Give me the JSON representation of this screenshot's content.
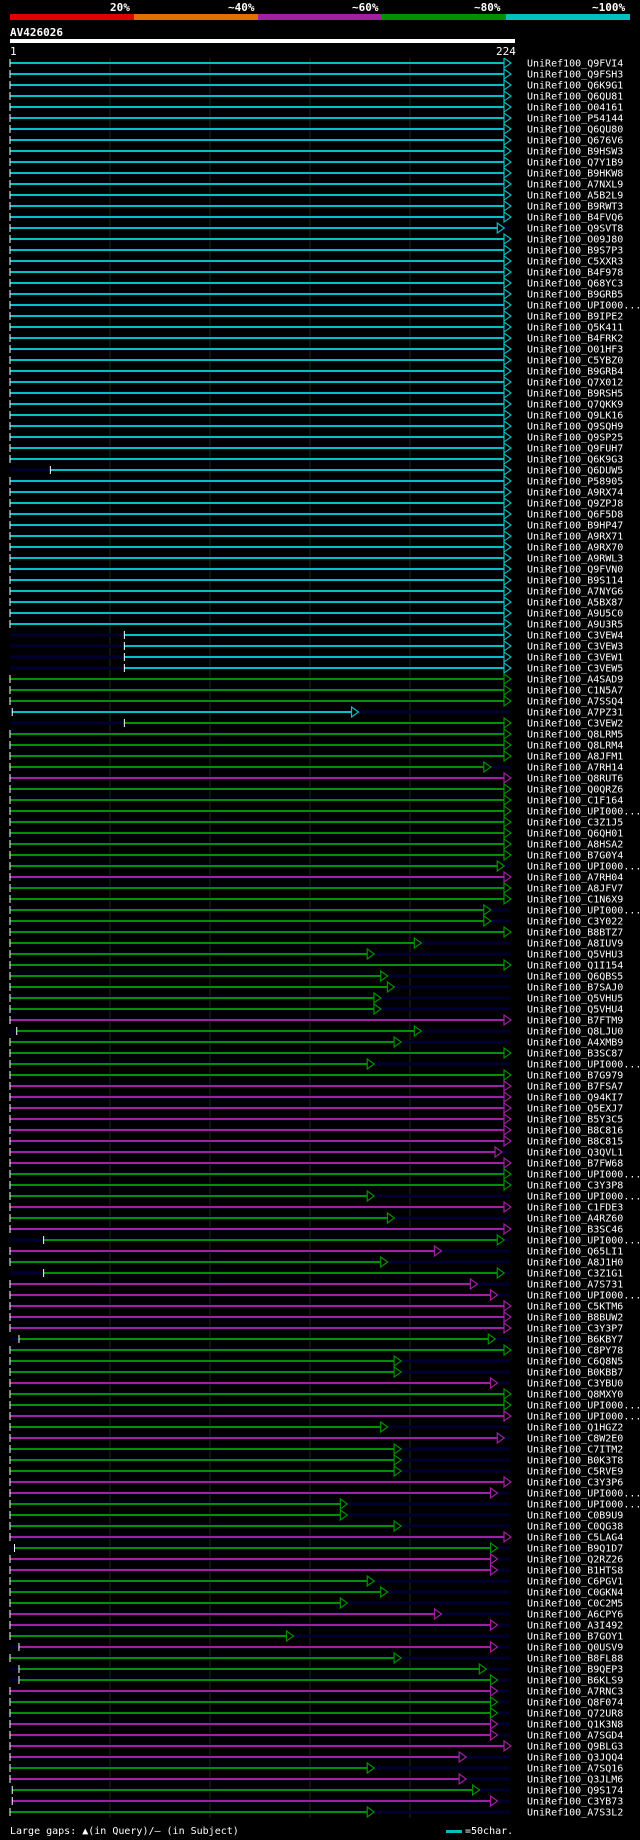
{
  "scale": {
    "labels": [
      "20%",
      "~40%",
      "~60%",
      "~80%",
      "~100%"
    ],
    "colors": [
      "#e00000",
      "#e07000",
      "#a020a0",
      "#009000",
      "#00c0c0"
    ]
  },
  "query": {
    "title": "AV426026",
    "start": "1",
    "end": "224"
  },
  "footer": {
    "large_gaps": "Large gaps: ▲(in Query)/— (in Subject)",
    "legend": "=50char."
  },
  "hits": [
    {
      "id": "UniRef100_Q9FVI4",
      "start": 1,
      "end": 224,
      "level": 5
    },
    {
      "id": "UniRef100_Q9FSH3",
      "start": 1,
      "end": 224,
      "level": 5
    },
    {
      "id": "UniRef100_Q6K9G1",
      "start": 1,
      "end": 224,
      "level": 5
    },
    {
      "id": "UniRef100_Q6QU81",
      "start": 1,
      "end": 224,
      "level": 5
    },
    {
      "id": "UniRef100_O04161",
      "start": 1,
      "end": 224,
      "level": 5
    },
    {
      "id": "UniRef100_P54144",
      "start": 1,
      "end": 224,
      "level": 5
    },
    {
      "id": "UniRef100_Q6QU80",
      "start": 1,
      "end": 224,
      "level": 5
    },
    {
      "id": "UniRef100_Q676V6",
      "start": 1,
      "end": 224,
      "level": 5
    },
    {
      "id": "UniRef100_B9HSW3",
      "start": 1,
      "end": 224,
      "level": 5
    },
    {
      "id": "UniRef100_Q7Y1B9",
      "start": 1,
      "end": 224,
      "level": 5
    },
    {
      "id": "UniRef100_B9HKW8",
      "start": 1,
      "end": 224,
      "level": 5
    },
    {
      "id": "UniRef100_A7NXL9",
      "start": 1,
      "end": 224,
      "level": 5
    },
    {
      "id": "UniRef100_A5B2L9",
      "start": 1,
      "end": 224,
      "level": 5
    },
    {
      "id": "UniRef100_B9RWT3",
      "start": 1,
      "end": 224,
      "level": 5
    },
    {
      "id": "UniRef100_B4FVQ6",
      "start": 1,
      "end": 224,
      "level": 5
    },
    {
      "id": "UniRef100_Q9SVT8",
      "start": 1,
      "end": 221,
      "level": 5
    },
    {
      "id": "UniRef100_O09J80",
      "start": 1,
      "end": 224,
      "level": 5
    },
    {
      "id": "UniRef100_B9S7P3",
      "start": 1,
      "end": 224,
      "level": 5
    },
    {
      "id": "UniRef100_C5XXR3",
      "start": 1,
      "end": 224,
      "level": 5
    },
    {
      "id": "UniRef100_B4F978",
      "start": 1,
      "end": 224,
      "level": 5
    },
    {
      "id": "UniRef100_Q68YC3",
      "start": 1,
      "end": 224,
      "level": 5
    },
    {
      "id": "UniRef100_B9GRB5",
      "start": 1,
      "end": 224,
      "level": 5
    },
    {
      "id": "UniRef100_UPI000...",
      "start": 1,
      "end": 224,
      "level": 5
    },
    {
      "id": "UniRef100_B9IPE2",
      "start": 1,
      "end": 224,
      "level": 5
    },
    {
      "id": "UniRef100_Q5K411",
      "start": 1,
      "end": 224,
      "level": 5
    },
    {
      "id": "UniRef100_B4FRK2",
      "start": 1,
      "end": 224,
      "level": 5
    },
    {
      "id": "UniRef100_O01HF3",
      "start": 1,
      "end": 224,
      "level": 5
    },
    {
      "id": "UniRef100_C5YBZ0",
      "start": 1,
      "end": 224,
      "level": 5
    },
    {
      "id": "UniRef100_B9GRB4",
      "start": 1,
      "end": 224,
      "level": 5
    },
    {
      "id": "UniRef100_Q7X012",
      "start": 1,
      "end": 224,
      "level": 5
    },
    {
      "id": "UniRef100_B9RSH5",
      "start": 1,
      "end": 224,
      "level": 5
    },
    {
      "id": "UniRef100_Q7QKK9",
      "start": 1,
      "end": 224,
      "level": 5
    },
    {
      "id": "UniRef100_Q9LK16",
      "start": 1,
      "end": 224,
      "level": 5
    },
    {
      "id": "UniRef100_Q9SQH9",
      "start": 1,
      "end": 224,
      "level": 5
    },
    {
      "id": "UniRef100_Q9SP25",
      "start": 1,
      "end": 224,
      "level": 5
    },
    {
      "id": "UniRef100_Q9FUH7",
      "start": 1,
      "end": 224,
      "level": 5
    },
    {
      "id": "UniRef100_Q6K9G3",
      "start": 1,
      "end": 224,
      "level": 5
    },
    {
      "id": "UniRef100_Q6DUW5",
      "start": 19,
      "end": 224,
      "level": 5
    },
    {
      "id": "UniRef100_P58905",
      "start": 1,
      "end": 224,
      "level": 5
    },
    {
      "id": "UniRef100_A9RX74",
      "start": 1,
      "end": 224,
      "level": 5
    },
    {
      "id": "UniRef100_Q9ZPJ8",
      "start": 1,
      "end": 224,
      "level": 5
    },
    {
      "id": "UniRef100_Q6F5D8",
      "start": 1,
      "end": 224,
      "level": 5
    },
    {
      "id": "UniRef100_B9HP47",
      "start": 1,
      "end": 224,
      "level": 5
    },
    {
      "id": "UniRef100_A9RX71",
      "start": 1,
      "end": 224,
      "level": 5
    },
    {
      "id": "UniRef100_A9RX70",
      "start": 1,
      "end": 224,
      "level": 5
    },
    {
      "id": "UniRef100_A9RWL3",
      "start": 1,
      "end": 224,
      "level": 5
    },
    {
      "id": "UniRef100_Q9FVN0",
      "start": 1,
      "end": 224,
      "level": 5
    },
    {
      "id": "UniRef100_B9S114",
      "start": 1,
      "end": 224,
      "level": 5
    },
    {
      "id": "UniRef100_A7NYG6",
      "start": 1,
      "end": 224,
      "level": 5
    },
    {
      "id": "UniRef100_A5BX87",
      "start": 1,
      "end": 224,
      "level": 5
    },
    {
      "id": "UniRef100_A9U5C0",
      "start": 1,
      "end": 224,
      "level": 5
    },
    {
      "id": "UniRef100_A9U3R5",
      "start": 1,
      "end": 224,
      "level": 5
    },
    {
      "id": "UniRef100_C3VEW4",
      "start": 52,
      "end": 224,
      "level": 5
    },
    {
      "id": "UniRef100_C3VEW3",
      "start": 52,
      "end": 224,
      "level": 5
    },
    {
      "id": "UniRef100_C3VEW1",
      "start": 52,
      "end": 224,
      "level": 5
    },
    {
      "id": "UniRef100_C3VEW5",
      "start": 52,
      "end": 224,
      "level": 5
    },
    {
      "id": "UniRef100_A4SAD9",
      "start": 1,
      "end": 224,
      "level": 4
    },
    {
      "id": "UniRef100_C1N5A7",
      "start": 1,
      "end": 224,
      "level": 4
    },
    {
      "id": "UniRef100_A7SSQ4",
      "start": 1,
      "end": 224,
      "level": 4
    },
    {
      "id": "UniRef100_A7PZ31",
      "start": 2,
      "end": 156,
      "level": 5
    },
    {
      "id": "UniRef100_C3VEW2",
      "start": 52,
      "end": 224,
      "level": 4
    },
    {
      "id": "UniRef100_Q8LRM5",
      "start": 1,
      "end": 224,
      "level": 4
    },
    {
      "id": "UniRef100_Q8LRM4",
      "start": 1,
      "end": 224,
      "level": 4
    },
    {
      "id": "UniRef100_A8JFM1",
      "start": 1,
      "end": 224,
      "level": 4
    },
    {
      "id": "UniRef100_A7RH14",
      "start": 1,
      "end": 215,
      "level": 4
    },
    {
      "id": "UniRef100_Q8RUT6",
      "start": 1,
      "end": 224,
      "level": 3
    },
    {
      "id": "UniRef100_Q0QRZ6",
      "start": 1,
      "end": 224,
      "level": 4
    },
    {
      "id": "UniRef100_C1F164",
      "start": 1,
      "end": 224,
      "level": 4
    },
    {
      "id": "UniRef100_UPI000...",
      "start": 1,
      "end": 224,
      "level": 4
    },
    {
      "id": "UniRef100_C3Z1J5",
      "start": 1,
      "end": 224,
      "level": 4
    },
    {
      "id": "UniRef100_Q6QH01",
      "start": 1,
      "end": 224,
      "level": 4
    },
    {
      "id": "UniRef100_A8HSA2",
      "start": 1,
      "end": 224,
      "level": 4
    },
    {
      "id": "UniRef100_B7G0Y4",
      "start": 1,
      "end": 224,
      "level": 4
    },
    {
      "id": "UniRef100_UPI000...",
      "start": 1,
      "end": 221,
      "level": 4
    },
    {
      "id": "UniRef100_A7RH04",
      "start": 1,
      "end": 224,
      "level": 3
    },
    {
      "id": "UniRef100_A8JFV7",
      "start": 1,
      "end": 224,
      "level": 4
    },
    {
      "id": "UniRef100_C1N6X9",
      "start": 1,
      "end": 224,
      "level": 4
    },
    {
      "id": "UniRef100_UPI000...",
      "start": 1,
      "end": 215,
      "level": 4
    },
    {
      "id": "UniRef100_C3Y022",
      "start": 1,
      "end": 215,
      "level": 4
    },
    {
      "id": "UniRef100_B8BTZ7",
      "start": 1,
      "end": 224,
      "level": 4
    },
    {
      "id": "UniRef100_A8IUV9",
      "start": 1,
      "end": 184,
      "level": 4
    },
    {
      "id": "UniRef100_Q5VHU3",
      "start": 1,
      "end": 163,
      "level": 4
    },
    {
      "id": "UniRef100_Q1I154",
      "start": 1,
      "end": 224,
      "level": 4
    },
    {
      "id": "UniRef100_Q6QBS5",
      "start": 1,
      "end": 169,
      "level": 4
    },
    {
      "id": "UniRef100_B7SAJ0",
      "start": 1,
      "end": 172,
      "level": 4
    },
    {
      "id": "UniRef100_Q5VHU5",
      "start": 1,
      "end": 166,
      "level": 4
    },
    {
      "id": "UniRef100_Q5VHU4",
      "start": 1,
      "end": 166,
      "level": 4
    },
    {
      "id": "UniRef100_B7FTM9",
      "start": 1,
      "end": 224,
      "level": 3
    },
    {
      "id": "UniRef100_Q8LJU0",
      "start": 4,
      "end": 184,
      "level": 4
    },
    {
      "id": "UniRef100_A4XMB9",
      "start": 1,
      "end": 175,
      "level": 4
    },
    {
      "id": "UniRef100_B3SC87",
      "start": 1,
      "end": 224,
      "level": 4
    },
    {
      "id": "UniRef100_UPI000...",
      "start": 1,
      "end": 163,
      "level": 4
    },
    {
      "id": "UniRef100_B7G979",
      "start": 1,
      "end": 224,
      "level": 4
    },
    {
      "id": "UniRef100_B7FSA7",
      "start": 1,
      "end": 224,
      "level": 3
    },
    {
      "id": "UniRef100_Q94KI7",
      "start": 1,
      "end": 224,
      "level": 3
    },
    {
      "id": "UniRef100_Q5EXJ7",
      "start": 1,
      "end": 224,
      "level": 3
    },
    {
      "id": "UniRef100_B5Y3C5",
      "start": 1,
      "end": 224,
      "level": 3
    },
    {
      "id": "UniRef100_B8C816",
      "start": 1,
      "end": 224,
      "level": 3
    },
    {
      "id": "UniRef100_B8C815",
      "start": 1,
      "end": 224,
      "level": 3
    },
    {
      "id": "UniRef100_Q3QVL1",
      "start": 1,
      "end": 220,
      "level": 3
    },
    {
      "id": "UniRef100_B7FW68",
      "start": 1,
      "end": 224,
      "level": 3
    },
    {
      "id": "UniRef100_UPI000...",
      "start": 1,
      "end": 224,
      "level": 4
    },
    {
      "id": "UniRef100_C3Y3P8",
      "start": 1,
      "end": 224,
      "level": 4
    },
    {
      "id": "UniRef100_UPI000...",
      "start": 1,
      "end": 163,
      "level": 4
    },
    {
      "id": "UniRef100_C1FDE3",
      "start": 1,
      "end": 224,
      "level": 3
    },
    {
      "id": "UniRef100_A4RZ60",
      "start": 1,
      "end": 172,
      "level": 4
    },
    {
      "id": "UniRef100_B3SC46",
      "start": 1,
      "end": 224,
      "level": 3
    },
    {
      "id": "UniRef100_UPI000...",
      "start": 16,
      "end": 221,
      "level": 4
    },
    {
      "id": "UniRef100_Q65LI1",
      "start": 1,
      "end": 193,
      "level": 3
    },
    {
      "id": "UniRef100_A8J1H0",
      "start": 1,
      "end": 169,
      "level": 4
    },
    {
      "id": "UniRef100_C3Z1G1",
      "start": 16,
      "end": 221,
      "level": 4
    },
    {
      "id": "UniRef100_A7S731",
      "start": 1,
      "end": 209,
      "level": 3
    },
    {
      "id": "UniRef100_UPI000...",
      "start": 1,
      "end": 218,
      "level": 3
    },
    {
      "id": "UniRef100_C5KTM6",
      "start": 1,
      "end": 224,
      "level": 3
    },
    {
      "id": "UniRef100_B8BUW2",
      "start": 1,
      "end": 224,
      "level": 3
    },
    {
      "id": "UniRef100_C3Y3P7",
      "start": 1,
      "end": 224,
      "level": 3
    },
    {
      "id": "UniRef100_B6KBY7",
      "start": 5,
      "end": 217,
      "level": 4
    },
    {
      "id": "UniRef100_C8PY78",
      "start": 1,
      "end": 224,
      "level": 4
    },
    {
      "id": "UniRef100_C6Q8N5",
      "start": 1,
      "end": 175,
      "level": 4
    },
    {
      "id": "UniRef100_B0KBB7",
      "start": 1,
      "end": 175,
      "level": 4
    },
    {
      "id": "UniRef100_C3YBU0",
      "start": 1,
      "end": 218,
      "level": 3
    },
    {
      "id": "UniRef100_Q8MXY0",
      "start": 1,
      "end": 224,
      "level": 4
    },
    {
      "id": "UniRef100_UPI000...",
      "start": 1,
      "end": 224,
      "level": 4
    },
    {
      "id": "UniRef100_UPI000...",
      "start": 1,
      "end": 224,
      "level": 3
    },
    {
      "id": "UniRef100_Q1HGZ2",
      "start": 1,
      "end": 169,
      "level": 4
    },
    {
      "id": "UniRef100_C8W2E0",
      "start": 1,
      "end": 221,
      "level": 3
    },
    {
      "id": "UniRef100_C7ITM2",
      "start": 1,
      "end": 175,
      "level": 4
    },
    {
      "id": "UniRef100_B0K3T8",
      "start": 1,
      "end": 175,
      "level": 4
    },
    {
      "id": "UniRef100_C5RVE9",
      "start": 1,
      "end": 175,
      "level": 4
    },
    {
      "id": "UniRef100_C3Y3P6",
      "start": 1,
      "end": 224,
      "level": 3
    },
    {
      "id": "UniRef100_UPI000...",
      "start": 1,
      "end": 218,
      "level": 3
    },
    {
      "id": "UniRef100_UPI000...",
      "start": 1,
      "end": 151,
      "level": 4
    },
    {
      "id": "UniRef100_C0B9U9",
      "start": 1,
      "end": 151,
      "level": 4
    },
    {
      "id": "UniRef100_C0QG38",
      "start": 1,
      "end": 175,
      "level": 4
    },
    {
      "id": "UniRef100_C5LAG4",
      "start": 1,
      "end": 224,
      "level": 3
    },
    {
      "id": "UniRef100_B9Q1D7",
      "start": 3,
      "end": 218,
      "level": 4
    },
    {
      "id": "UniRef100_Q2RZ26",
      "start": 1,
      "end": 218,
      "level": 3
    },
    {
      "id": "UniRef100_B1HTS8",
      "start": 1,
      "end": 218,
      "level": 3
    },
    {
      "id": "UniRef100_C6PGV1",
      "start": 1,
      "end": 163,
      "level": 4
    },
    {
      "id": "UniRef100_C0GKN4",
      "start": 1,
      "end": 169,
      "level": 4
    },
    {
      "id": "UniRef100_C0C2M5",
      "start": 1,
      "end": 151,
      "level": 4
    },
    {
      "id": "UniRef100_A6CPY6",
      "start": 1,
      "end": 193,
      "level": 3
    },
    {
      "id": "UniRef100_A3I492",
      "start": 1,
      "end": 218,
      "level": 3
    },
    {
      "id": "UniRef100_B7GOY1",
      "start": 1,
      "end": 127,
      "level": 4
    },
    {
      "id": "UniRef100_Q0USV9",
      "start": 5,
      "end": 218,
      "level": 3
    },
    {
      "id": "UniRef100_B8FL88",
      "start": 1,
      "end": 175,
      "level": 4
    },
    {
      "id": "UniRef100_B9QEP3",
      "start": 5,
      "end": 213,
      "level": 4
    },
    {
      "id": "UniRef100_B6KLS9",
      "start": 5,
      "end": 218,
      "level": 4
    },
    {
      "id": "UniRef100_A7RNC3",
      "start": 1,
      "end": 218,
      "level": 3
    },
    {
      "id": "UniRef100_Q8F074",
      "start": 1,
      "end": 218,
      "level": 4
    },
    {
      "id": "UniRef100_Q72UR8",
      "start": 1,
      "end": 218,
      "level": 4
    },
    {
      "id": "UniRef100_Q1K3N8",
      "start": 1,
      "end": 218,
      "level": 3
    },
    {
      "id": "UniRef100_A7SGD4",
      "start": 1,
      "end": 218,
      "level": 3
    },
    {
      "id": "UniRef100_Q9BLG3",
      "start": 1,
      "end": 224,
      "level": 3
    },
    {
      "id": "UniRef100_Q3JQQ4",
      "start": 1,
      "end": 204,
      "level": 3
    },
    {
      "id": "UniRef100_A7SQ16",
      "start": 1,
      "end": 163,
      "level": 4
    },
    {
      "id": "UniRef100_Q3JLM6",
      "start": 1,
      "end": 204,
      "level": 3
    },
    {
      "id": "UniRef100_Q9S174",
      "start": 2,
      "end": 210,
      "level": 4
    },
    {
      "id": "UniRef100_C3YB73",
      "start": 2,
      "end": 218,
      "level": 3
    },
    {
      "id": "UniRef100_A7S3L2",
      "start": 1,
      "end": 163,
      "level": 4
    }
  ]
}
